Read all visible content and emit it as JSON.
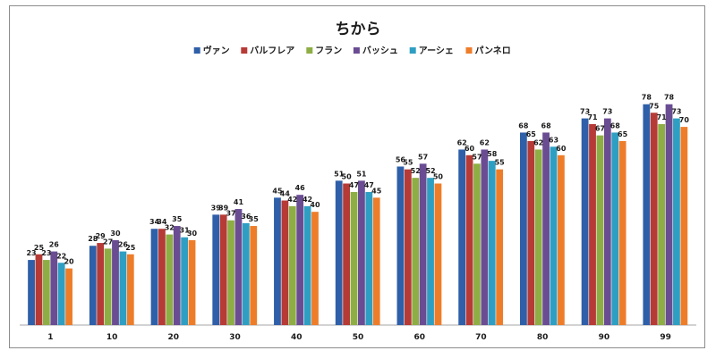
{
  "chart_data": {
    "type": "bar",
    "title": "ちから",
    "xlabel": "",
    "ylabel": "",
    "legend_position": "top",
    "gridlines": false,
    "ylim": [
      0,
      85
    ],
    "categories": [
      "1",
      "10",
      "20",
      "30",
      "40",
      "50",
      "60",
      "70",
      "80",
      "90",
      "99"
    ],
    "series": [
      {
        "name": "ヴァン",
        "color": "#2E5FA8",
        "values": [
          23,
          28,
          34,
          39,
          45,
          51,
          56,
          62,
          68,
          73,
          78
        ]
      },
      {
        "name": "バルフレア",
        "color": "#B63A36",
        "values": [
          25,
          29,
          34,
          39,
          44,
          50,
          55,
          60,
          65,
          71,
          75
        ]
      },
      {
        "name": "フラン",
        "color": "#8EAE45",
        "values": [
          23,
          27,
          32,
          37,
          42,
          47,
          52,
          57,
          62,
          67,
          71
        ]
      },
      {
        "name": "バッシュ",
        "color": "#6A4C93",
        "values": [
          26,
          30,
          35,
          41,
          46,
          51,
          57,
          62,
          68,
          73,
          78
        ]
      },
      {
        "name": "アーシェ",
        "color": "#2E9FC2",
        "values": [
          22,
          26,
          31,
          36,
          42,
          47,
          52,
          58,
          63,
          68,
          73
        ]
      },
      {
        "name": "パンネロ",
        "color": "#EE7D2A",
        "values": [
          20,
          25,
          30,
          35,
          40,
          45,
          50,
          55,
          60,
          65,
          70
        ]
      }
    ]
  }
}
